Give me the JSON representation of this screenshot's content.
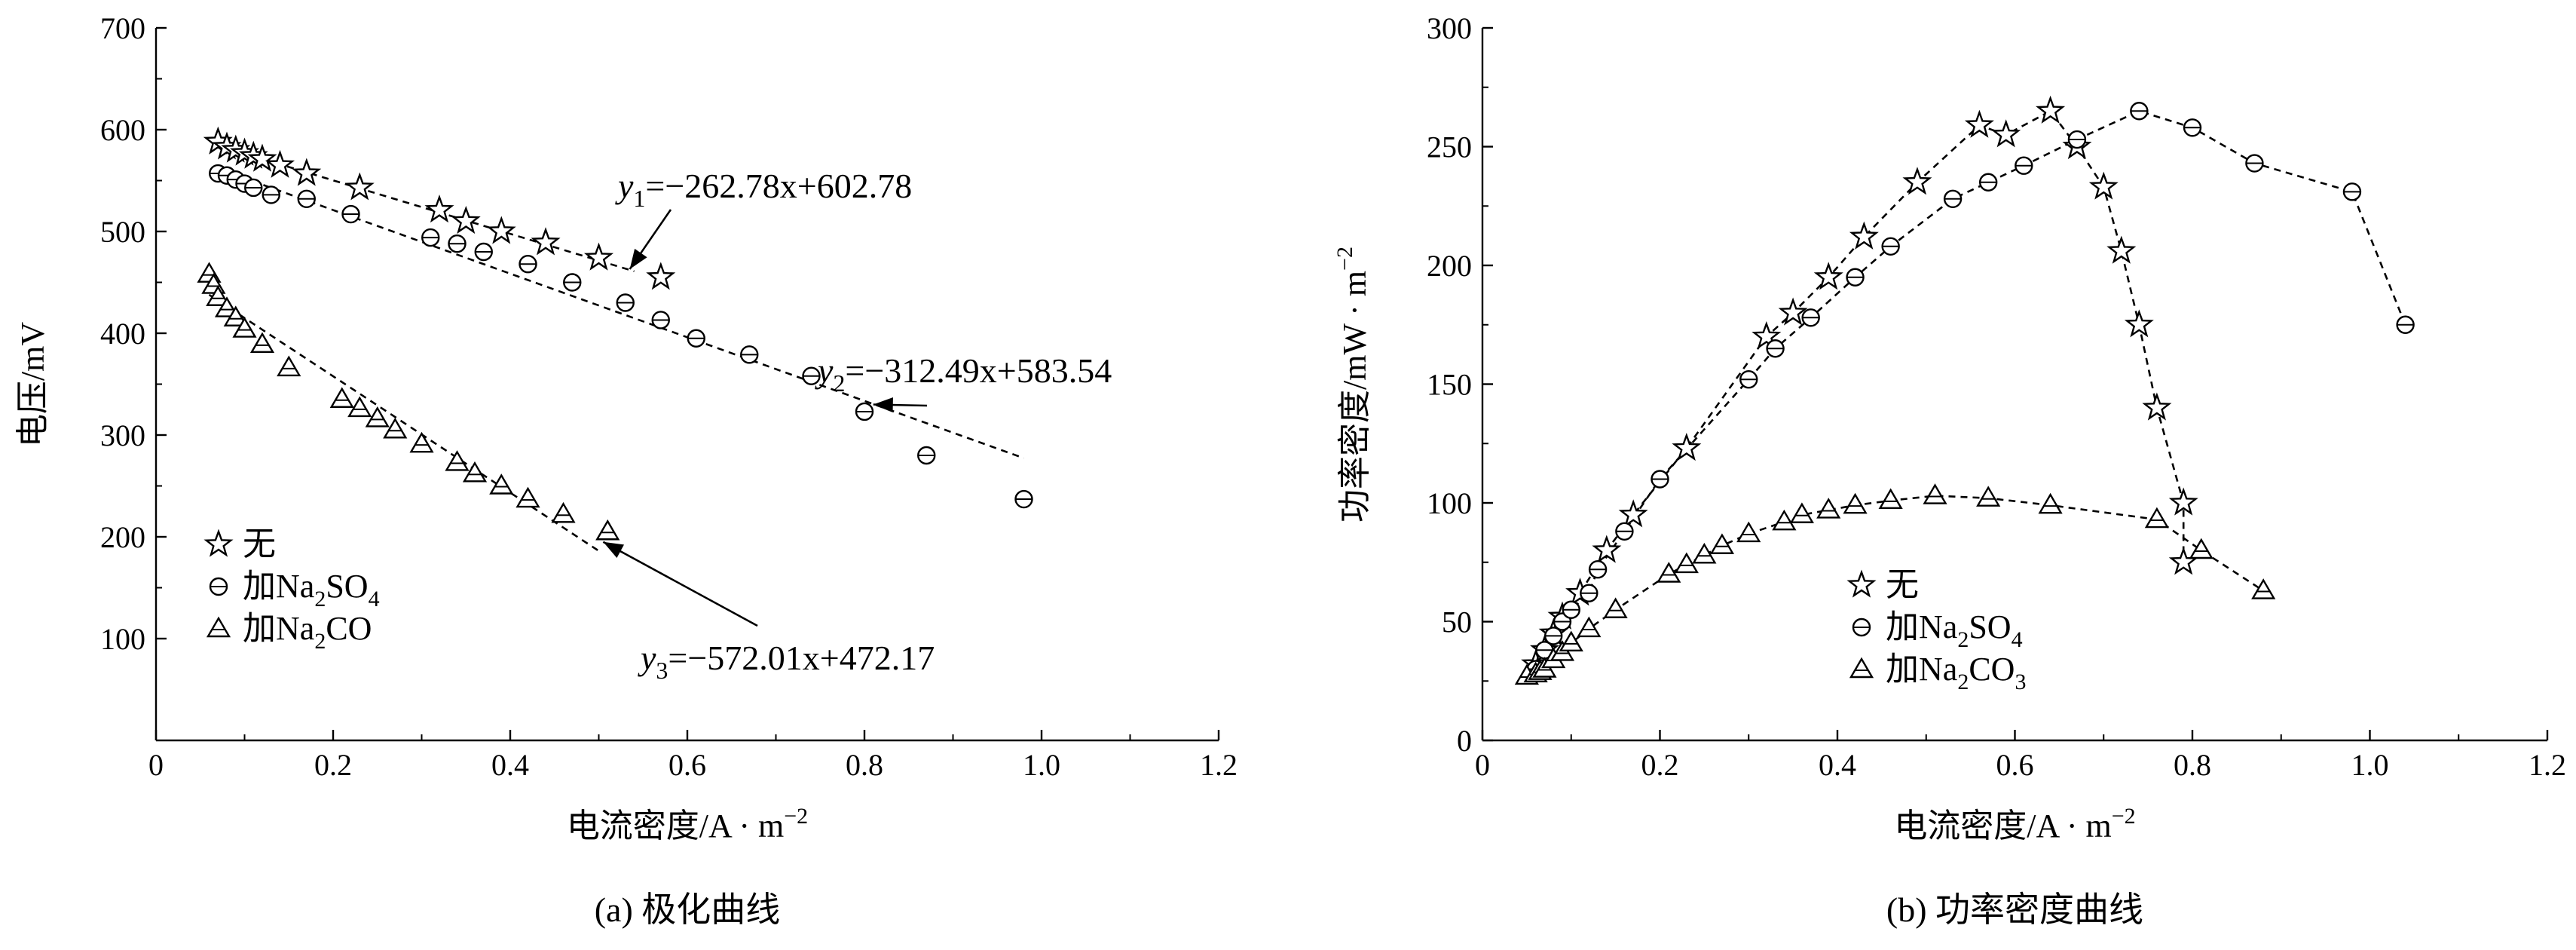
{
  "chart_data": [
    {
      "type": "scatter",
      "caption": "(a) 极化曲线",
      "xlabel": "电流密度/A · m",
      "xlabel_sup": "−2",
      "ylabel": "电压/mV",
      "xlim": [
        0,
        1.2
      ],
      "ylim": [
        0,
        700
      ],
      "xticks": [
        0,
        0.2,
        0.4,
        0.6,
        0.8,
        1.0,
        1.2
      ],
      "xtick_labels": [
        "0",
        "0.2",
        "0.4",
        "0.6",
        "0.8",
        "1.0",
        "1.2"
      ],
      "yticks": [
        100,
        200,
        300,
        400,
        500,
        600,
        700
      ],
      "ytick_labels": [
        "100",
        "200",
        "300",
        "400",
        "500",
        "600",
        "700"
      ],
      "grid": false,
      "legend": "bottom-left",
      "series": [
        {
          "name": "无",
          "marker": "star",
          "x": [
            0.07,
            0.08,
            0.09,
            0.1,
            0.11,
            0.12,
            0.14,
            0.17,
            0.23,
            0.32,
            0.35,
            0.39,
            0.44,
            0.5,
            0.57
          ],
          "y": [
            588,
            583,
            580,
            577,
            574,
            571,
            565,
            557,
            543,
            521,
            510,
            500,
            489,
            474,
            455
          ]
        },
        {
          "name": "加Na",
          "name_sub": "2",
          "name_tail": "SO",
          "name_sub2": "4",
          "marker": "circle-bar",
          "x": [
            0.07,
            0.08,
            0.09,
            0.1,
            0.11,
            0.13,
            0.17,
            0.22,
            0.31,
            0.34,
            0.37,
            0.42,
            0.47,
            0.53,
            0.57,
            0.61,
            0.67,
            0.74,
            0.8,
            0.87,
            0.98
          ],
          "y": [
            557,
            555,
            551,
            547,
            543,
            536,
            532,
            517,
            494,
            488,
            480,
            468,
            450,
            430,
            413,
            395,
            379,
            358,
            323,
            280,
            237
          ]
        },
        {
          "name": "加Na",
          "name_sub": "2",
          "name_tail": "CO",
          "name_sub2": "",
          "marker": "triangle-bar",
          "x": [
            0.06,
            0.065,
            0.07,
            0.08,
            0.09,
            0.1,
            0.12,
            0.15,
            0.21,
            0.23,
            0.25,
            0.27,
            0.3,
            0.34,
            0.36,
            0.39,
            0.42,
            0.46,
            0.51
          ],
          "y": [
            458,
            447,
            435,
            424,
            415,
            404,
            389,
            366,
            335,
            326,
            316,
            305,
            291,
            273,
            262,
            250,
            237,
            222,
            205
          ]
        }
      ],
      "fits": [
        {
          "label": "y",
          "sub": "1",
          "eq": "=−262.78x+602.78",
          "slope": -262.78,
          "intercept": 602.78,
          "x_range": [
            0.07,
            0.54
          ],
          "arrow_to": [
            0.535,
            463
          ]
        },
        {
          "label": "y",
          "sub": "2",
          "eq": "=−312.49x+583.54",
          "slope": -312.49,
          "intercept": 583.54,
          "x_range": [
            0.07,
            0.98
          ],
          "arrow_to": [
            0.81,
            330
          ]
        },
        {
          "label": "y",
          "sub": "3",
          "eq": "=−572.01x+472.17",
          "slope": -572.01,
          "intercept": 472.17,
          "x_range": [
            0.06,
            0.5
          ],
          "arrow_to": [
            0.505,
            195
          ]
        }
      ]
    },
    {
      "type": "line",
      "caption": "(b) 功率密度曲线",
      "xlabel": "电流密度/A · m",
      "xlabel_sup": "−2",
      "ylabel": "功率密度/mW · m",
      "ylabel_sup": "−2",
      "xlim": [
        0,
        1.2
      ],
      "ylim": [
        0,
        300
      ],
      "xticks": [
        0,
        0.2,
        0.4,
        0.6,
        0.8,
        1.0,
        1.2
      ],
      "xtick_labels": [
        "0",
        "0.2",
        "0.4",
        "0.6",
        "0.8",
        "1.0",
        "1.2"
      ],
      "yticks": [
        0,
        50,
        100,
        150,
        200,
        250,
        300
      ],
      "ytick_labels": [
        "0",
        "50",
        "100",
        "150",
        "200",
        "250",
        "300"
      ],
      "grid": false,
      "legend": "bottom-center",
      "series": [
        {
          "name": "无",
          "marker": "star",
          "x": [
            0.06,
            0.07,
            0.08,
            0.09,
            0.11,
            0.14,
            0.17,
            0.23,
            0.32,
            0.35,
            0.39,
            0.43,
            0.49,
            0.56,
            0.59,
            0.64,
            0.67,
            0.7,
            0.72,
            0.74,
            0.76,
            0.79,
            0.79
          ],
          "y": [
            32,
            38,
            45,
            52,
            62,
            80,
            95,
            123,
            170,
            180,
            195,
            212,
            235,
            259,
            255,
            265,
            250,
            233,
            206,
            175,
            140,
            100,
            75
          ]
        },
        {
          "name": "加Na",
          "name_sub": "2",
          "name_tail": "SO",
          "name_sub2": "4",
          "marker": "circle-bar",
          "x": [
            0.06,
            0.07,
            0.08,
            0.09,
            0.1,
            0.12,
            0.13,
            0.16,
            0.2,
            0.3,
            0.33,
            0.37,
            0.42,
            0.46,
            0.53,
            0.57,
            0.61,
            0.67,
            0.74,
            0.8,
            0.87,
            0.98,
            1.04
          ],
          "y": [
            30,
            38,
            44,
            50,
            55,
            62,
            72,
            88,
            110,
            152,
            165,
            178,
            195,
            208,
            228,
            235,
            242,
            253,
            265,
            258,
            243,
            231,
            175
          ]
        },
        {
          "name": "加Na",
          "name_sub": "2",
          "name_tail": "CO",
          "name_sub2": "3",
          "marker": "triangle-bar",
          "x": [
            0.05,
            0.06,
            0.065,
            0.07,
            0.08,
            0.09,
            0.1,
            0.12,
            0.15,
            0.21,
            0.23,
            0.25,
            0.27,
            0.3,
            0.34,
            0.36,
            0.39,
            0.42,
            0.46,
            0.51,
            0.57,
            0.64,
            0.76,
            0.81,
            0.88
          ],
          "y": [
            27,
            28,
            29,
            30,
            34,
            37,
            41,
            47,
            55,
            70,
            74,
            78,
            82,
            87,
            92,
            95,
            97,
            99,
            101,
            103,
            102,
            99,
            93,
            80,
            63
          ]
        }
      ]
    }
  ]
}
